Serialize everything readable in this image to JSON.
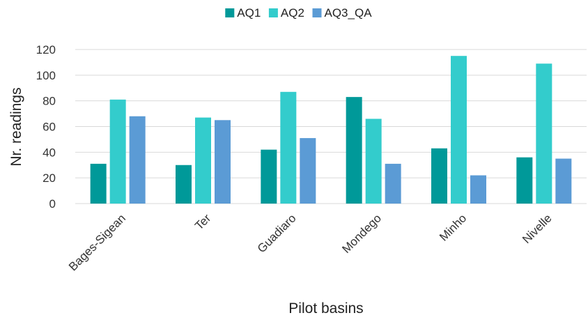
{
  "chart_data": {
    "type": "bar",
    "categories": [
      "Bages-Sigean",
      "Ter",
      "Guadiaro",
      "Mondego",
      "Minho",
      "Nivelle"
    ],
    "series": [
      {
        "name": "AQ1",
        "color": "#009999",
        "values": [
          31,
          30,
          42,
          83,
          43,
          36
        ]
      },
      {
        "name": "AQ2",
        "color": "#33CCCC",
        "values": [
          81,
          67,
          87,
          66,
          115,
          109
        ]
      },
      {
        "name": "AQ3_QA",
        "color": "#5B9BD5",
        "values": [
          68,
          65,
          51,
          31,
          22,
          35
        ]
      }
    ],
    "xlabel": "Pilot basins",
    "ylabel": "Nr. readings",
    "ylim": [
      0,
      120
    ],
    "yticks": [
      0,
      20,
      40,
      60,
      80,
      100,
      120
    ],
    "grid": true,
    "legend_position": "top"
  }
}
